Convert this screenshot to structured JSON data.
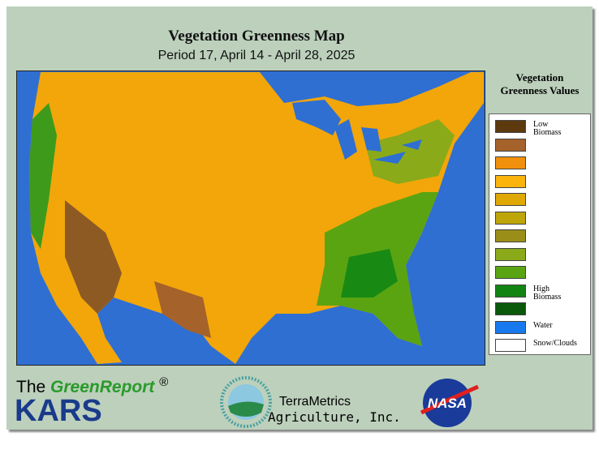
{
  "header": {
    "title": "Vegetation Greenness Map",
    "subtitle": "Period 17, April 14 - April 28, 2025"
  },
  "legend": {
    "title": "Vegetation Greenness Values",
    "items": [
      {
        "color": "#5c3a0e",
        "label": "Low Biomass"
      },
      {
        "color": "#a5622a"
      },
      {
        "color": "#f0900c"
      },
      {
        "color": "#fbb40c"
      },
      {
        "color": "#e0a804"
      },
      {
        "color": "#bea60a"
      },
      {
        "color": "#9a8e18"
      },
      {
        "color": "#8aaa1a"
      },
      {
        "color": "#58a412"
      },
      {
        "color": "#128412",
        "label": "High Biomass"
      },
      {
        "color": "#0a580a"
      },
      {
        "color": "#1878ee",
        "label": "Water"
      },
      {
        "color": "#ffffff",
        "label": "Snow/Clouds"
      }
    ]
  },
  "footer": {
    "prefix": "The",
    "brand": "GreenReport",
    "mark": "®",
    "org": "KARS",
    "partner_line1": "TerraMetrics",
    "partner_line2": "Agriculture, Inc.",
    "nasa": "NASA"
  }
}
